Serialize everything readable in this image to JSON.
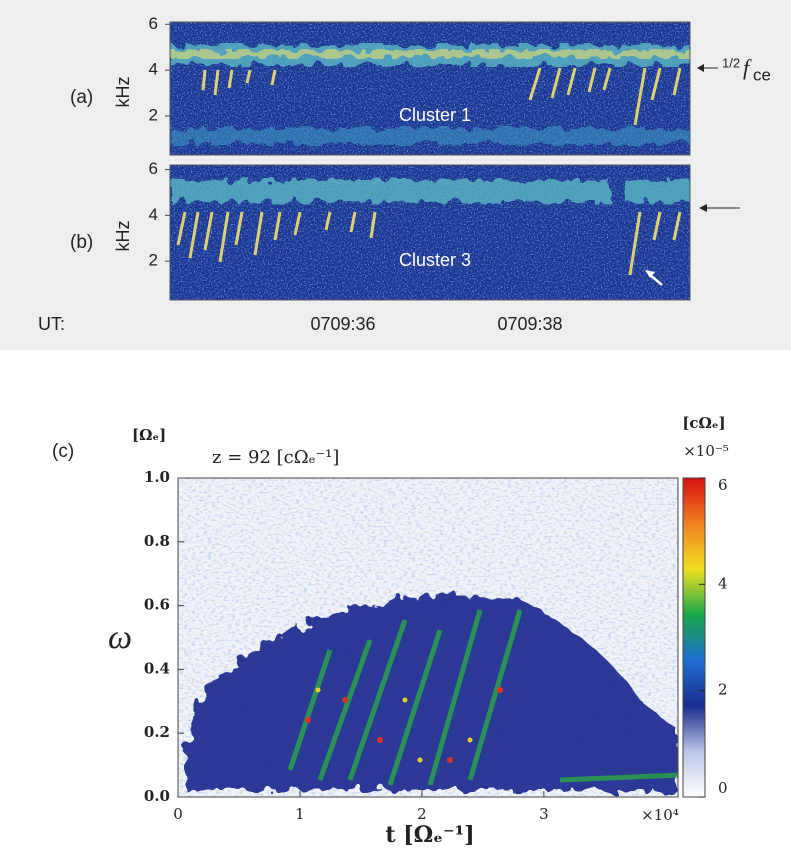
{
  "chart_data": [
    {
      "type": "spectrogram",
      "panel": "(a)",
      "ylabel": "kHz",
      "ylim": [
        0.3,
        6.1
      ],
      "yticks": [
        2,
        4,
        6
      ],
      "annotation": "Cluster 1",
      "marker": {
        "fraction": "1/2",
        "symbol": "f",
        "subscript": "ce"
      }
    },
    {
      "type": "spectrogram",
      "panel": "(b)",
      "ylabel": "kHz",
      "ylim": [
        0.3,
        6.2
      ],
      "yticks": [
        2,
        4,
        6
      ],
      "annotation": "Cluster 3",
      "time_axis": {
        "label": "UT:",
        "ticks": [
          "0709:36",
          "0709:38"
        ]
      }
    },
    {
      "type": "heatmap",
      "panel": "(c)",
      "title": "z = 92 [cΩₑ⁻¹]",
      "ylabel": "ω",
      "yunit": "[Ωₑ]",
      "xlabel": "t [Ωₑ⁻¹]",
      "xmultiplier": "×10⁴",
      "xlim": [
        0,
        4.1
      ],
      "xticks": [
        0,
        1,
        2,
        3
      ],
      "ylim": [
        0,
        1
      ],
      "yticks": [
        {
          "value": 0,
          "label": "0.0"
        },
        {
          "value": 0.2,
          "label": "0.2"
        },
        {
          "value": 0.4,
          "label": "0.4"
        },
        {
          "value": 0.6,
          "label": "0.6"
        },
        {
          "value": 0.8,
          "label": "0.8"
        },
        {
          "value": 1,
          "label": "1.0"
        }
      ],
      "colorbar": {
        "unit": "[cΩₑ]",
        "multiplier": "×10⁻⁵",
        "clim": [
          0,
          6
        ],
        "ticks": [
          0,
          2,
          4,
          6
        ],
        "colors": [
          "#ffffff",
          "#b9c6e4",
          "#1c2a8e",
          "#1f6fd0",
          "#1aa84a",
          "#f0e020",
          "#f08020",
          "#d81010"
        ]
      }
    }
  ]
}
